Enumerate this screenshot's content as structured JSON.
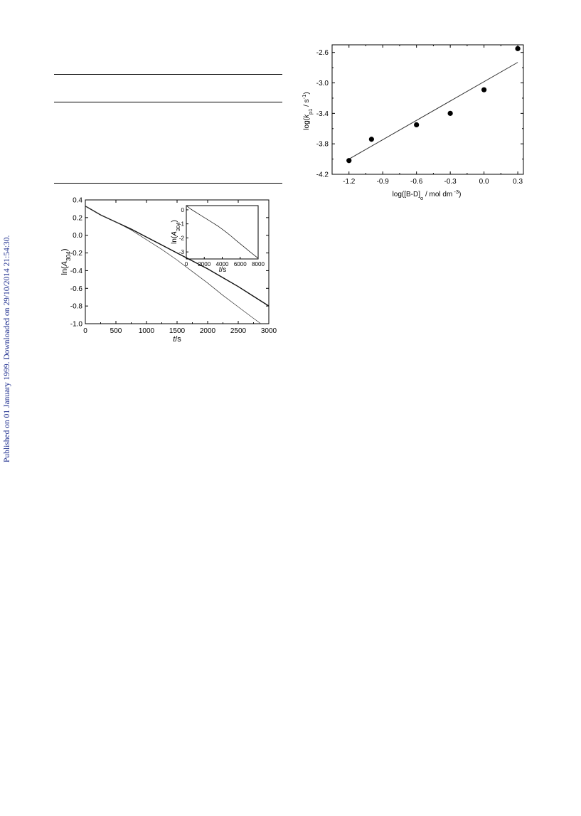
{
  "side_note": "Published on 01 January 1999. Downloaded on 29/10/2014 21:54:30.",
  "chart_data": [
    {
      "type": "line",
      "xlabel": "t/s",
      "ylabel": "ln(A304)",
      "xlim": [
        0,
        3000
      ],
      "ylim": [
        -1.0,
        0.4
      ],
      "x_ticks": [
        "0",
        "500",
        "1000",
        "1500",
        "2000",
        "2500",
        "3000"
      ],
      "y_ticks": [
        "0.4",
        "0.2",
        "0.0",
        "-0.2",
        "-0.4",
        "-0.6",
        "-0.8",
        "-1.0"
      ],
      "series": [
        {
          "x": [
            0,
            250,
            500,
            750,
            1000,
            1250,
            1500,
            1750,
            2000,
            2250,
            2500,
            2750,
            3000
          ],
          "y": [
            0.33,
            0.23,
            0.15,
            0.07,
            -0.02,
            -0.11,
            -0.2,
            -0.29,
            -0.38,
            -0.48,
            -0.58,
            -0.69,
            -0.8
          ]
        },
        {
          "x": [
            0,
            250,
            500,
            750,
            1000,
            1250,
            1500,
            1750,
            2000,
            2250,
            2500,
            2750,
            2870
          ],
          "y": [
            0.33,
            0.23,
            0.15,
            0.06,
            -0.05,
            -0.16,
            -0.28,
            -0.41,
            -0.54,
            -0.68,
            -0.81,
            -0.94,
            -1.0
          ]
        }
      ],
      "inset": {
        "xlabel": "t/s",
        "ylabel": "ln(A304)",
        "xlim": [
          0,
          8000
        ],
        "ylim": [
          -3.5,
          0.3
        ],
        "x_ticks": [
          "0",
          "2000",
          "4000",
          "6000",
          "8000"
        ],
        "y_ticks": [
          "0",
          "-1",
          "-2",
          "-3"
        ],
        "x": [
          0,
          500,
          1000,
          1500,
          2000,
          2500,
          3000,
          3500,
          4000,
          4500,
          5000,
          5500,
          6000,
          6500,
          7000,
          7500,
          8000
        ],
        "y": [
          0.3,
          0.05,
          -0.15,
          -0.35,
          -0.55,
          -0.75,
          -0.95,
          -1.15,
          -1.38,
          -1.62,
          -1.88,
          -2.15,
          -2.42,
          -2.68,
          -2.95,
          -3.2,
          -3.45
        ]
      }
    },
    {
      "type": "scatter",
      "xlabel": "log([B-D]o / mol dm-3)",
      "ylabel": "log(kp1 / s-1)",
      "xlim": [
        -1.35,
        0.35
      ],
      "ylim": [
        -4.2,
        -2.5
      ],
      "x_ticks": [
        "-1.2",
        "-0.9",
        "-0.6",
        "-0.3",
        "0.0",
        "0.3"
      ],
      "y_ticks": [
        "-2.6",
        "-3.0",
        "-3.4",
        "-3.8",
        "-4.2"
      ],
      "points": {
        "x": [
          -1.2,
          -1.0,
          -0.6,
          -0.3,
          0.0,
          0.3
        ],
        "y": [
          -4.02,
          -3.74,
          -3.55,
          -3.4,
          -3.09,
          -2.55
        ]
      },
      "fit_line": {
        "x": [
          -1.2,
          0.3
        ],
        "y": [
          -4.0,
          -2.73
        ]
      }
    }
  ]
}
